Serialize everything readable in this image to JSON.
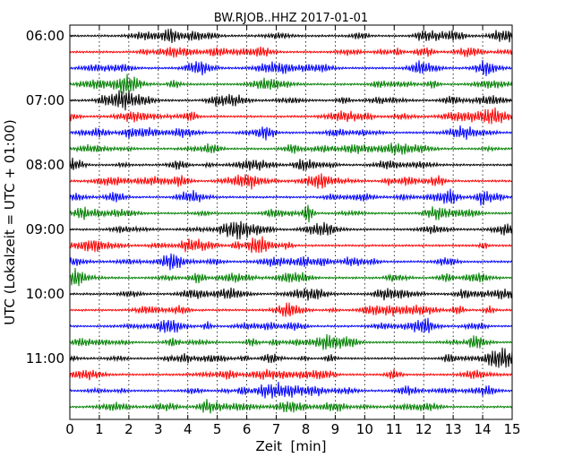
{
  "chart_data": {
    "type": "line",
    "title": "BW.RJOB..HHZ 2017-01-01",
    "xlabel": "Zeit  [min]",
    "ylabel": "UTC (Lokalzeit = UTC + 01:00)",
    "xlim": [
      0,
      15
    ],
    "x_ticks": [
      "0",
      "1",
      "2",
      "3",
      "4",
      "5",
      "6",
      "7",
      "8",
      "9",
      "10",
      "11",
      "12",
      "13",
      "14",
      "15"
    ],
    "y_tick_labels": [
      "06:00",
      "07:00",
      "08:00",
      "09:00",
      "10:00",
      "11:00"
    ],
    "y_tick_rows": [
      0,
      4,
      8,
      12,
      16,
      20
    ],
    "n_traces": 24,
    "trace_interval_minutes": 15,
    "trace_colors": [
      "#000000",
      "#ff0000",
      "#0000ff",
      "#008000"
    ],
    "vertical_grid": "dotted",
    "description": "Dayplot seismogram, 24 traces of 15 min each from 06:00 to 11:45 UTC, colors cycling black, red, blue, green"
  }
}
